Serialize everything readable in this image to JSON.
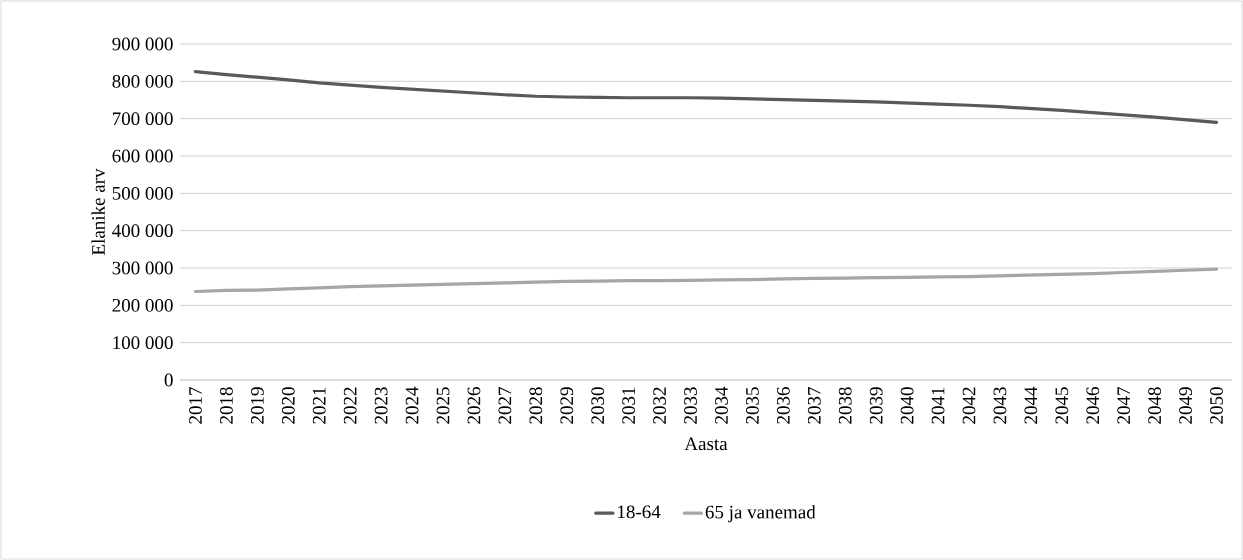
{
  "chart_data": {
    "type": "line",
    "xlabel": "Aasta",
    "ylabel": "Elanike arv",
    "categories": [
      "2017",
      "2018",
      "2019",
      "2020",
      "2021",
      "2022",
      "2023",
      "2024",
      "2025",
      "2026",
      "2027",
      "2028",
      "2029",
      "2030",
      "2031",
      "2032",
      "2033",
      "2034",
      "2035",
      "2036",
      "2037",
      "2038",
      "2039",
      "2040",
      "2041",
      "2042",
      "2043",
      "2044",
      "2045",
      "2046",
      "2047",
      "2048",
      "2049",
      "2050"
    ],
    "series": [
      {
        "name": "18-64",
        "color": "#595959",
        "values": [
          826000,
          818000,
          811000,
          804000,
          796000,
          790000,
          784000,
          779000,
          774000,
          769000,
          764000,
          760000,
          758000,
          757000,
          756000,
          756000,
          756000,
          755000,
          753000,
          751000,
          749000,
          747000,
          745000,
          742000,
          739000,
          736000,
          732000,
          727000,
          722000,
          716000,
          710000,
          704000,
          697000,
          690000
        ]
      },
      {
        "name": "65 ja vanemad",
        "color": "#a6a6a6",
        "values": [
          237000,
          240000,
          241000,
          244000,
          247000,
          250000,
          252000,
          254000,
          256000,
          258000,
          260000,
          262000,
          264000,
          265000,
          266000,
          266000,
          267000,
          268000,
          269000,
          271000,
          272000,
          273000,
          274000,
          275000,
          276000,
          277000,
          279000,
          281000,
          283000,
          285000,
          288000,
          291000,
          294000,
          297000
        ]
      }
    ],
    "ylim": [
      0,
      900000
    ],
    "yticks": [
      {
        "value": 0,
        "label": "0"
      },
      {
        "value": 100000,
        "label": "100 000"
      },
      {
        "value": 200000,
        "label": "200 000"
      },
      {
        "value": 300000,
        "label": "300 000"
      },
      {
        "value": 400000,
        "label": "400 000"
      },
      {
        "value": 500000,
        "label": "500 000"
      },
      {
        "value": 600000,
        "label": "600 000"
      },
      {
        "value": 700000,
        "label": "700 000"
      },
      {
        "value": 800000,
        "label": "800 000"
      },
      {
        "value": 900000,
        "label": "900 000"
      }
    ],
    "grid": "y",
    "legend": "bottom",
    "marker": "none",
    "line_style": "solid"
  }
}
